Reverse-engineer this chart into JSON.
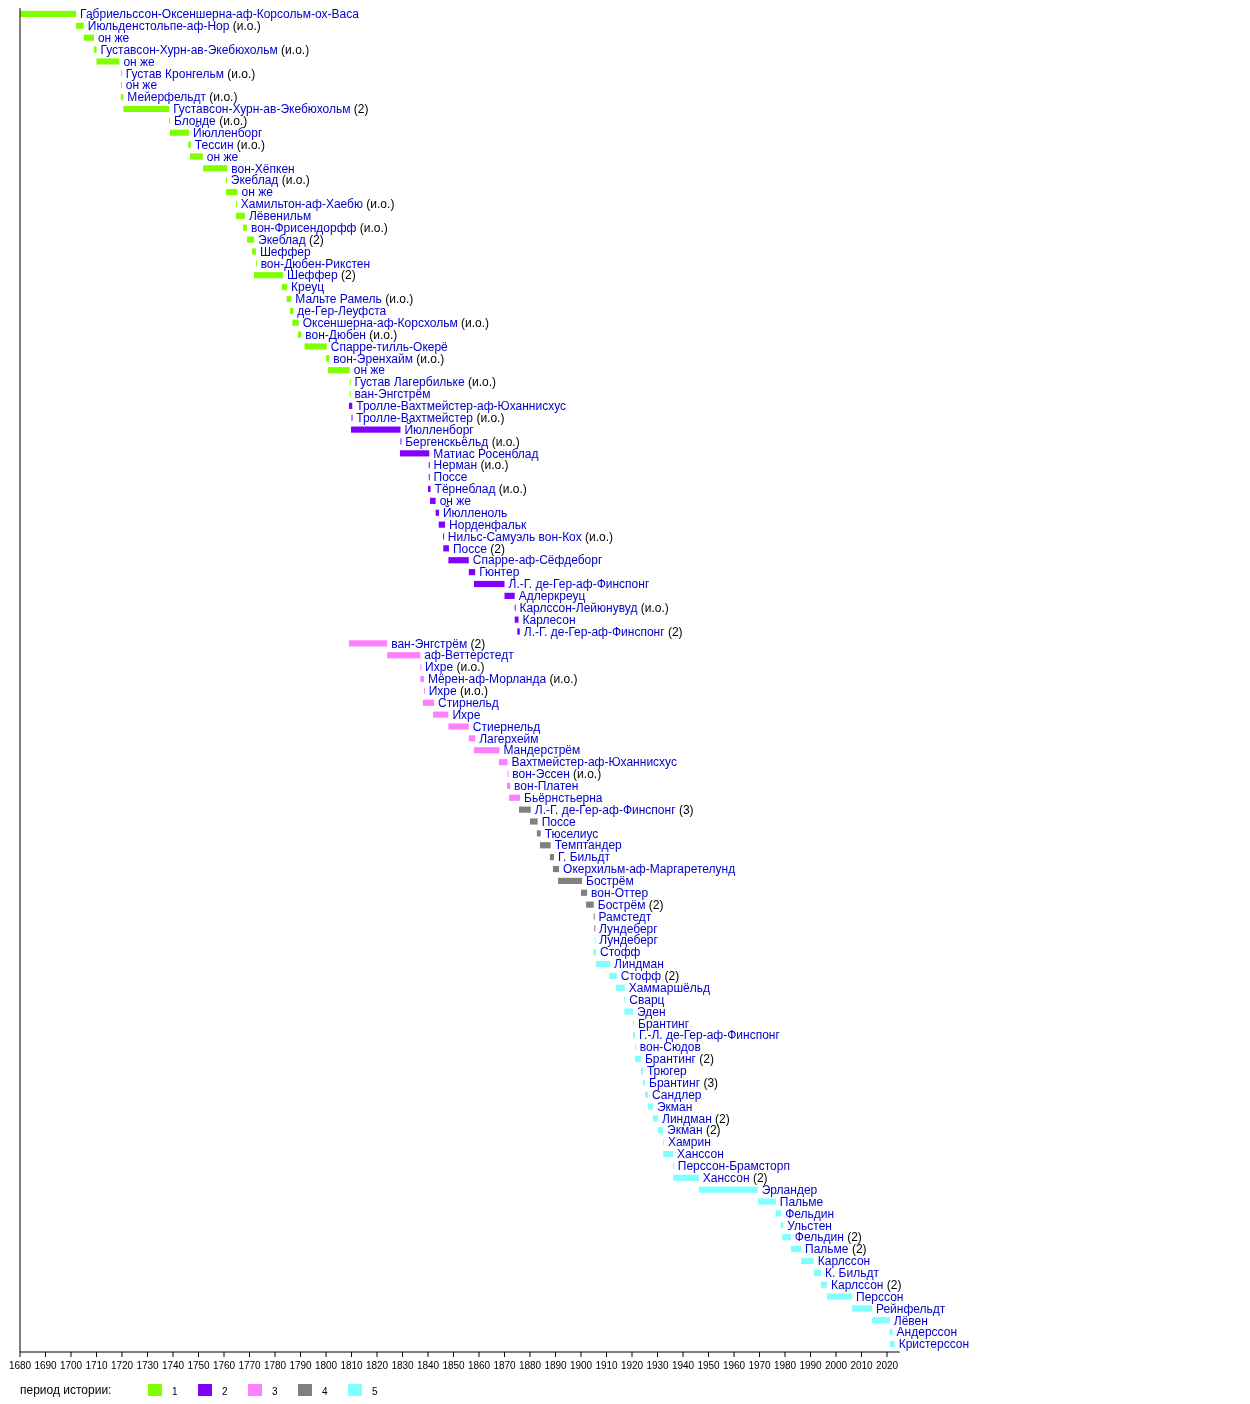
{
  "chart_data": {
    "type": "bar",
    "orientation": "horizontal",
    "legend_title": "период истории:",
    "legend": "bottom left",
    "grid": false,
    "xlim": [
      1680,
      2025
    ],
    "xticks": [
      1680,
      1690,
      1700,
      1710,
      1720,
      1730,
      1740,
      1750,
      1760,
      1770,
      1780,
      1790,
      1800,
      1810,
      1820,
      1830,
      1840,
      1850,
      1860,
      1870,
      1880,
      1890,
      1900,
      1910,
      1920,
      1930,
      1940,
      1950,
      1960,
      1970,
      1980,
      1990,
      2000,
      2010,
      2020
    ],
    "categories": [
      "Габриельссон-Оксеншерна-аф-Корсольм-ох-Васа",
      "Йюльденстольпе-аф-Нор (и.о.)",
      "он же",
      "Густавсон-Хурн-ав-Экебюхольм (и.о.)",
      "он же",
      "Густав Кронгельм (и.о.)",
      "он же",
      "Мейерфельдт (и.о.)",
      "Густавсон-Хурн-ав-Экебюхольм (2)",
      "Блонде (и.о.)",
      "Йюлленборг",
      "Тессин (и.о.)",
      "он же",
      "вон-Хёпкен",
      "Экеблад (и.о.)",
      "он же",
      "Хамильтон-аф-Хаебю (и.о.)",
      "Лёвенильм",
      "вон-Фрисендорфф (и.о.)",
      "Экеблад (2)",
      "Шеффер",
      "вон-Дюбен-Рикстен",
      "Шеффер (2)",
      "Креуц",
      "Мальте Рамель (и.о.)",
      "де-Гер-Леуфста",
      "Оксеншерна-аф-Корсхольм (и.о.)",
      "вон-Дюбен (и.о.)",
      "Спарре-тилль-Окерё",
      "вон-Эренхайм (и.о.)",
      "он же",
      "Густав Лагербильке (и.о.)",
      "ван-Энгстрём",
      "Тролле-Вахтмейстер-аф-Юханнисхус",
      "Тролле-Вахтмейстер (и.о.)",
      "Йюлленборг",
      "Бергенскьёльд (и.о.)",
      "Матиас Росенблад",
      "Нерман (и.о.)",
      "Поссе",
      "Тёрнеблад (и.о.)",
      "он же",
      "Йюлленоль",
      "Норденфальк",
      "Нильс-Самуэль вон-Кох (и.о.)",
      "Поссе (2)",
      "Спарре-аф-Сёфдеборг",
      "Гюнтер",
      "Л.-Г. де-Гер-аф-Финспонг",
      "Адлеркреуц",
      "Карлссон-Лейюнувуд (и.о.)",
      "Карлесон",
      "Л.-Г. де-Гер-аф-Финспонг (2)",
      "ван-Энгстрём (2)",
      "аф-Веттерстедт",
      "Ихре (и.о.)",
      "Мёрен-аф-Морланда (и.о.)",
      "Ихре (и.о.)",
      "Стирнельд",
      "Ихре",
      "Стиернельд",
      "Лагерхейм",
      "Мандерстрём",
      "Вахтмейстер-аф-Юханнисхус",
      "вон-Эссен (и.о.)",
      "вон-Платен",
      "Бьёрнстьерна",
      "Л.-Г. де-Гер-аф-Финспонг (3)",
      "Поссе",
      "Тюселиус",
      "Темптандер",
      "Г. Бильдт",
      "Окерхильм-аф-Маргаретелунд",
      "Бострём",
      "вон-Оттер",
      "Бострём (2)",
      "Рамстедт",
      "Лундеберг",
      "Лундеберг",
      "Стофф",
      "Линдман",
      "Стофф (2)",
      "Хаммаршёльд",
      "Сварц",
      "Эден",
      "Брантинг",
      "Г.-Л. де-Гер-аф-Финспонг",
      "вон-Сюдов",
      "Брантинг (2)",
      "Трюгер",
      "Брантинг (3)",
      "Сандлер",
      "Экман",
      "Линдман (2)",
      "Экман (2)",
      "Хамрин",
      "Ханссон",
      "Перссон-Брамсторп",
      "Ханссон (2)",
      "Эрландер",
      "Пальме",
      "Фельдин",
      "Ульстен",
      "Фельдин (2)",
      "Пальме (2)",
      "Карлссон",
      "К. Бильдт",
      "Карлссон (2)",
      "Перссон",
      "Рейнфельдт",
      "Лёвен",
      "Андерссон",
      "Кристерссон"
    ],
    "series": [
      {
        "name": "1",
        "color": "#80ff00",
        "base": [
          1680,
          1702,
          1705,
          1709,
          1710,
          1719.6,
          1719.6,
          1719.5,
          1720.5,
          1738.5,
          1738.8,
          1746,
          1746.7,
          1751.8,
          1760.8,
          1760.8,
          1764.7,
          1764.7,
          1767.5,
          1769,
          1771,
          1772.5,
          1771.8,
          1782.7,
          1784.6,
          1785.9,
          1786.8,
          1789,
          1791.6,
          1800,
          1800.8,
          1809.3,
          1809.3,
          null,
          null,
          null,
          null,
          null,
          null,
          null,
          null,
          null,
          null,
          null,
          null,
          null,
          null,
          null,
          null,
          null,
          null,
          null,
          null,
          null,
          null,
          null,
          null,
          null,
          null,
          null,
          null,
          null,
          null,
          null,
          null,
          null,
          null,
          null,
          null,
          null,
          null,
          null,
          null,
          null,
          null,
          null,
          null,
          null,
          null,
          null,
          null,
          null,
          null,
          null,
          null,
          null,
          null,
          null,
          null,
          null,
          null,
          null,
          null,
          null,
          null,
          null,
          null,
          null,
          null,
          null,
          null,
          null,
          null,
          null,
          null,
          null,
          null,
          null,
          null,
          null,
          null,
          null,
          null
        ],
        "values": [
          22,
          3,
          4,
          1,
          9,
          0.3,
          0.3,
          1,
          18,
          0.3,
          7.5,
          1,
          5,
          9.5,
          0.3,
          4.5,
          0.3,
          3.5,
          1.5,
          2.8,
          1.5,
          0.3,
          11.3,
          2,
          1.8,
          1.3,
          2.5,
          1.3,
          8.7,
          1.3,
          8.5,
          0.3,
          0.3,
          null,
          null,
          null,
          null,
          null,
          null,
          null,
          null,
          null,
          null,
          null,
          null,
          null,
          null,
          null,
          null,
          null,
          null,
          null,
          null,
          null,
          null,
          null,
          null,
          null,
          null,
          null,
          null,
          null,
          null,
          null,
          null,
          null,
          null,
          null,
          null,
          null,
          null,
          null,
          null,
          null,
          null,
          null,
          null,
          null,
          null,
          null,
          null,
          null,
          null,
          null,
          null,
          null,
          null,
          null,
          null,
          null,
          null,
          null,
          null,
          null,
          null,
          null,
          null,
          null,
          null,
          null,
          null,
          null,
          null,
          null,
          null,
          null,
          null,
          null,
          null,
          null,
          null,
          null,
          null
        ]
      },
      {
        "name": "2",
        "color": "#8000ff",
        "base": [
          null,
          null,
          null,
          null,
          null,
          null,
          null,
          null,
          null,
          null,
          null,
          null,
          null,
          null,
          null,
          null,
          null,
          null,
          null,
          null,
          null,
          null,
          null,
          null,
          null,
          null,
          null,
          null,
          null,
          null,
          null,
          null,
          null,
          1809,
          1810,
          1809.8,
          1829.2,
          1829,
          1840.3,
          1840.3,
          1840,
          1840.8,
          1843,
          1844.2,
          1845.9,
          1846,
          1848,
          1856,
          1858,
          1870,
          1874,
          1874,
          1875,
          null,
          null,
          null,
          null,
          null,
          null,
          null,
          null,
          null,
          null,
          null,
          null,
          null,
          null,
          null,
          null,
          null,
          null,
          null,
          null,
          null,
          null,
          null,
          null,
          null,
          null,
          null,
          null,
          null,
          null,
          null,
          null,
          null,
          null,
          null,
          null,
          null,
          null,
          null,
          null,
          null,
          null,
          null,
          null,
          null,
          null,
          null,
          null,
          null,
          null,
          null,
          null,
          null,
          null,
          null,
          null,
          null,
          null,
          null,
          null
        ],
        "values": [
          null,
          null,
          null,
          null,
          null,
          null,
          null,
          null,
          null,
          null,
          null,
          null,
          null,
          null,
          null,
          null,
          null,
          null,
          null,
          null,
          null,
          null,
          null,
          null,
          null,
          null,
          null,
          null,
          null,
          null,
          null,
          null,
          null,
          1.3,
          0.3,
          19.4,
          0.3,
          11.5,
          0.3,
          0.3,
          1,
          2.2,
          1.3,
          2.5,
          0.3,
          2.2,
          8,
          2.5,
          12,
          4,
          0.3,
          1.5,
          1,
          null,
          null,
          null,
          null,
          null,
          null,
          null,
          null,
          null,
          null,
          null,
          null,
          null,
          null,
          null,
          null,
          null,
          null,
          null,
          null,
          null,
          null,
          null,
          null,
          null,
          null,
          null,
          null,
          null,
          null,
          null,
          null,
          null,
          null,
          null,
          null,
          null,
          null,
          null,
          null,
          null,
          null,
          null,
          null,
          null,
          null,
          null,
          null,
          null,
          null,
          null,
          null,
          null,
          null,
          null,
          null,
          null,
          null,
          null,
          null
        ]
      },
      {
        "name": "3",
        "color": "#ff80ff",
        "base": [
          null,
          null,
          null,
          null,
          null,
          null,
          null,
          null,
          null,
          null,
          null,
          null,
          null,
          null,
          null,
          null,
          null,
          null,
          null,
          null,
          null,
          null,
          null,
          null,
          null,
          null,
          null,
          null,
          null,
          null,
          null,
          null,
          null,
          null,
          null,
          null,
          null,
          null,
          null,
          null,
          null,
          null,
          null,
          null,
          null,
          null,
          null,
          null,
          null,
          null,
          null,
          null,
          null,
          1809,
          1824,
          1837,
          1837,
          1838.4,
          1838,
          1842,
          1848,
          1856,
          1858,
          1867.8,
          1871.2,
          1871,
          1871.8,
          null,
          null,
          null,
          null,
          null,
          null,
          null,
          null,
          null,
          null,
          null,
          null,
          null,
          null,
          null,
          null,
          null,
          null,
          null,
          null,
          null,
          null,
          null,
          null,
          null,
          null,
          null,
          null,
          null,
          null,
          null,
          null,
          null,
          null,
          null,
          null,
          null,
          null,
          null,
          null,
          null,
          null,
          null,
          null,
          null,
          null
        ],
        "values": [
          null,
          null,
          null,
          null,
          null,
          null,
          null,
          null,
          null,
          null,
          null,
          null,
          null,
          null,
          null,
          null,
          null,
          null,
          null,
          null,
          null,
          null,
          null,
          null,
          null,
          null,
          null,
          null,
          null,
          null,
          null,
          null,
          null,
          null,
          null,
          null,
          null,
          null,
          null,
          null,
          null,
          null,
          null,
          null,
          null,
          null,
          null,
          null,
          null,
          null,
          null,
          null,
          null,
          15,
          13,
          0.3,
          1.4,
          0.3,
          4.4,
          6,
          8,
          2.5,
          10,
          3.4,
          0.3,
          1.2,
          4.3,
          null,
          null,
          null,
          null,
          null,
          null,
          null,
          null,
          null,
          null,
          null,
          null,
          null,
          null,
          null,
          null,
          null,
          null,
          null,
          null,
          null,
          null,
          null,
          null,
          null,
          null,
          null,
          null,
          null,
          null,
          null,
          null,
          null,
          null,
          null,
          null,
          null,
          null,
          null,
          null,
          null,
          null,
          null,
          null,
          null,
          null
        ]
      },
      {
        "name": "4",
        "color": "#808080",
        "base": [
          null,
          null,
          null,
          null,
          null,
          null,
          null,
          null,
          null,
          null,
          null,
          null,
          null,
          null,
          null,
          null,
          null,
          null,
          null,
          null,
          null,
          null,
          null,
          null,
          null,
          null,
          null,
          null,
          null,
          null,
          null,
          null,
          null,
          null,
          null,
          null,
          null,
          null,
          null,
          null,
          null,
          null,
          null,
          null,
          null,
          null,
          null,
          null,
          null,
          null,
          null,
          null,
          null,
          null,
          null,
          null,
          null,
          null,
          null,
          null,
          null,
          null,
          null,
          null,
          null,
          null,
          null,
          1875.7,
          1880,
          1882.7,
          1883.9,
          1887.8,
          1889,
          1891,
          1900,
          1902,
          1905,
          1905.2,
          null,
          null,
          null,
          null,
          null,
          null,
          null,
          null,
          null,
          null,
          null,
          null,
          null,
          null,
          null,
          null,
          null,
          null,
          null,
          null,
          null,
          null,
          null,
          null,
          null,
          null,
          null,
          null,
          null,
          null,
          null,
          null,
          null,
          null,
          null
        ],
        "values": [
          null,
          null,
          null,
          null,
          null,
          null,
          null,
          null,
          null,
          null,
          null,
          null,
          null,
          null,
          null,
          null,
          null,
          null,
          null,
          null,
          null,
          null,
          null,
          null,
          null,
          null,
          null,
          null,
          null,
          null,
          null,
          null,
          null,
          null,
          null,
          null,
          null,
          null,
          null,
          null,
          null,
          null,
          null,
          null,
          null,
          null,
          null,
          null,
          null,
          null,
          null,
          null,
          null,
          null,
          null,
          null,
          null,
          null,
          null,
          null,
          null,
          null,
          null,
          null,
          null,
          null,
          null,
          4.6,
          3,
          1.5,
          4.2,
          1.6,
          2.4,
          9.4,
          2.4,
          3,
          0.3,
          0.3,
          null,
          null,
          null,
          null,
          null,
          null,
          null,
          null,
          null,
          null,
          null,
          null,
          null,
          null,
          null,
          null,
          null,
          null,
          null,
          null,
          null,
          null,
          null,
          null,
          null,
          null,
          null,
          null,
          null,
          null,
          null,
          null,
          null,
          null,
          null
        ]
      },
      {
        "name": "5",
        "color": "#80ffff",
        "base": [
          null,
          null,
          null,
          null,
          null,
          null,
          null,
          null,
          null,
          null,
          null,
          null,
          null,
          null,
          null,
          null,
          null,
          null,
          null,
          null,
          null,
          null,
          null,
          null,
          null,
          null,
          null,
          null,
          null,
          null,
          null,
          null,
          null,
          null,
          null,
          null,
          null,
          null,
          null,
          null,
          null,
          null,
          null,
          null,
          null,
          null,
          null,
          null,
          null,
          null,
          null,
          null,
          null,
          null,
          null,
          null,
          null,
          null,
          null,
          null,
          null,
          null,
          null,
          null,
          null,
          null,
          null,
          null,
          null,
          null,
          null,
          null,
          null,
          null,
          null,
          null,
          null,
          null,
          1905.3,
          1904.8,
          1905.9,
          1911,
          1913.7,
          1917,
          1917,
          1920.4,
          1920.4,
          1921.2,
          1921.2,
          1923.5,
          1924.3,
          1925.1,
          1926.3,
          1928.2,
          1930.2,
          1932.2,
          1932.2,
          1936.1,
          1936.1,
          1946.2,
          1969.4,
          1976.4,
          1978.4,
          1978.9,
          1982.3,
          1986.3,
          1991.3,
          1994.1,
          1996.5,
          2006.3,
          2014.1,
          2021.1,
          2021.1
        ],
        "values": [
          null,
          null,
          null,
          null,
          null,
          null,
          null,
          null,
          null,
          null,
          null,
          null,
          null,
          null,
          null,
          null,
          null,
          null,
          null,
          null,
          null,
          null,
          null,
          null,
          null,
          null,
          null,
          null,
          null,
          null,
          null,
          null,
          null,
          null,
          null,
          null,
          null,
          null,
          null,
          null,
          null,
          null,
          null,
          null,
          null,
          null,
          null,
          null,
          null,
          null,
          null,
          null,
          null,
          null,
          null,
          null,
          null,
          null,
          null,
          null,
          null,
          null,
          null,
          null,
          null,
          null,
          null,
          null,
          null,
          null,
          null,
          null,
          null,
          null,
          null,
          null,
          null,
          null,
          0.3,
          1.1,
          5.5,
          3,
          3.5,
          0.4,
          3.4,
          0.4,
          0.8,
          0.3,
          2.3,
          0.8,
          0.8,
          1.2,
          1.9,
          2,
          2,
          0.3,
          3.9,
          0.3,
          10.1,
          23.1,
          7,
          2.1,
          0.9,
          3.4,
          4,
          5,
          2.8,
          2.4,
          9.8,
          7.8,
          7,
          1.1,
          1.9
        ]
      }
    ]
  }
}
